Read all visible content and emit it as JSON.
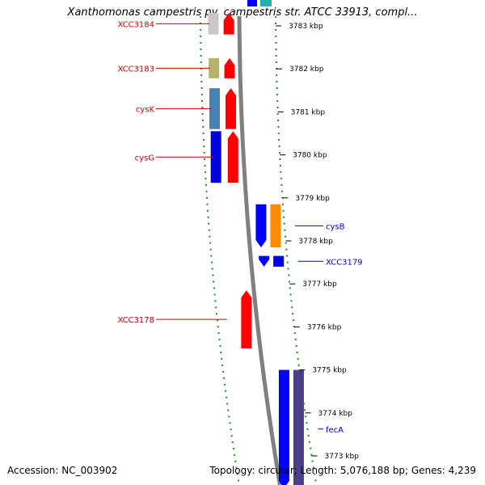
{
  "header": {
    "title": "Xanthomonas campestris pv. campestris str. ATCC 33913, compl..."
  },
  "footer": {
    "accession": "Accession: NC_003902",
    "summary": "Topology: circular; Length: 5,076,188 bp; Genes: 4,239"
  },
  "colors": {
    "reverse_label": "#cc0000",
    "forward_label": "#0000cc",
    "backbone": "#808080",
    "dotted_ruler": "#228b22"
  },
  "map": {
    "ticks": [
      {
        "kbp": 3783,
        "label": "3783 kbp"
      },
      {
        "kbp": 3782,
        "label": "3782 kbp"
      },
      {
        "kbp": 3781,
        "label": "3781 kbp"
      },
      {
        "kbp": 3780,
        "label": "3780 kbp"
      },
      {
        "kbp": 3779,
        "label": "3779 kbp"
      },
      {
        "kbp": 3778,
        "label": "3778 kbp"
      },
      {
        "kbp": 3777,
        "label": "3777 kbp"
      },
      {
        "kbp": 3776,
        "label": "3776 kbp"
      },
      {
        "kbp": 3775,
        "label": "3775 kbp"
      },
      {
        "kbp": 3774,
        "label": "3774 kbp"
      },
      {
        "kbp": 3773,
        "label": "3773 kbp"
      }
    ],
    "genes": [
      {
        "name": "XCC3184",
        "strand": "reverse",
        "start_kbp": 3783.3,
        "end_kbp": 3782.8,
        "cog_color": "#c8c8c8"
      },
      {
        "name": "XCC3183",
        "strand": "reverse",
        "start_kbp": 3782.25,
        "end_kbp": 3781.78,
        "cog_color": "#b5b36e"
      },
      {
        "name": "cysK",
        "strand": "reverse",
        "start_kbp": 3781.55,
        "end_kbp": 3780.6,
        "cog_color": "#4682b4"
      },
      {
        "name": "cysG",
        "strand": "reverse",
        "start_kbp": 3780.55,
        "end_kbp": 3779.35,
        "cog_color": "#0000e0"
      },
      {
        "name": "cysB",
        "strand": "forward",
        "start_kbp": 3778.85,
        "end_kbp": 3777.85,
        "cog_color": "#ff8c00"
      },
      {
        "name": "XCC3179",
        "strand": "forward",
        "start_kbp": 3777.65,
        "end_kbp": 3777.4,
        "cog_color": "#0000e0"
      },
      {
        "name": "XCC3178",
        "strand": "reverse",
        "start_kbp": 3776.85,
        "end_kbp": 3775.5,
        "cog_color": null
      },
      {
        "name": "fecA",
        "strand": "forward",
        "start_kbp": 3775.0,
        "end_kbp": 3772.25,
        "cog_color": "#4b3f87"
      }
    ],
    "upper_partial": {
      "strand": "forward",
      "cog_color": "#20b2aa"
    }
  }
}
